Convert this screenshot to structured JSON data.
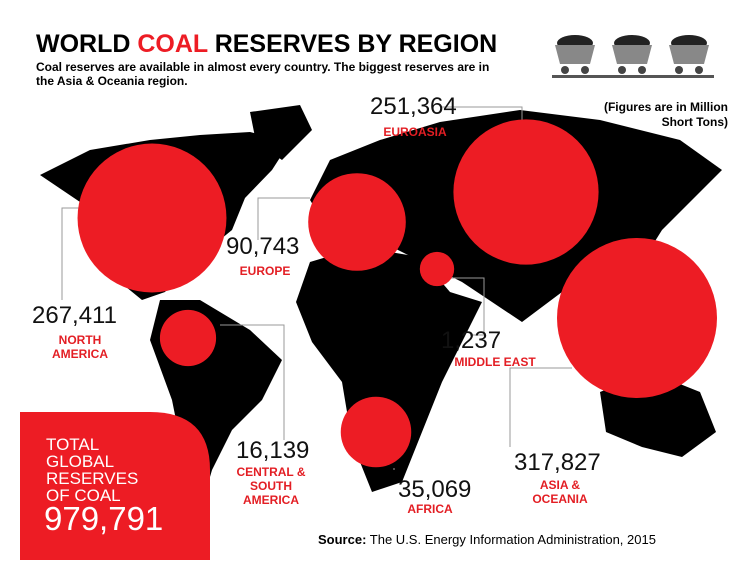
{
  "chart_data": {
    "type": "bubble",
    "title": [
      "WORLD",
      "COAL",
      "RESERVES BY REGION"
    ],
    "subtitle": "Coal reserves are available in almost every country. The biggest reserves are in the Asia & Oceania region.",
    "note": "(Figures are in Million Short Tons)",
    "categories": [
      "EUROASIA",
      "EUROPE",
      "NORTH AMERICA",
      "MIDDLE EAST",
      "CENTRAL & SOUTH AMERICA",
      "AFRICA",
      "ASIA & OCEANIA"
    ],
    "values": [
      251364,
      90743,
      267411,
      1237,
      16139,
      35069,
      317827
    ],
    "value_labels": [
      "251,364",
      "90,743",
      "267,411",
      "1,237",
      "16,139",
      "35,069",
      "317,827"
    ],
    "color": "#ed1c24",
    "total_label": "TOTAL GLOBAL RESERVES OF COAL",
    "total": 979791,
    "total_value_label": "979,791",
    "source_label": "Source:",
    "source": "The U.S. Energy Information Administration, 2015"
  }
}
